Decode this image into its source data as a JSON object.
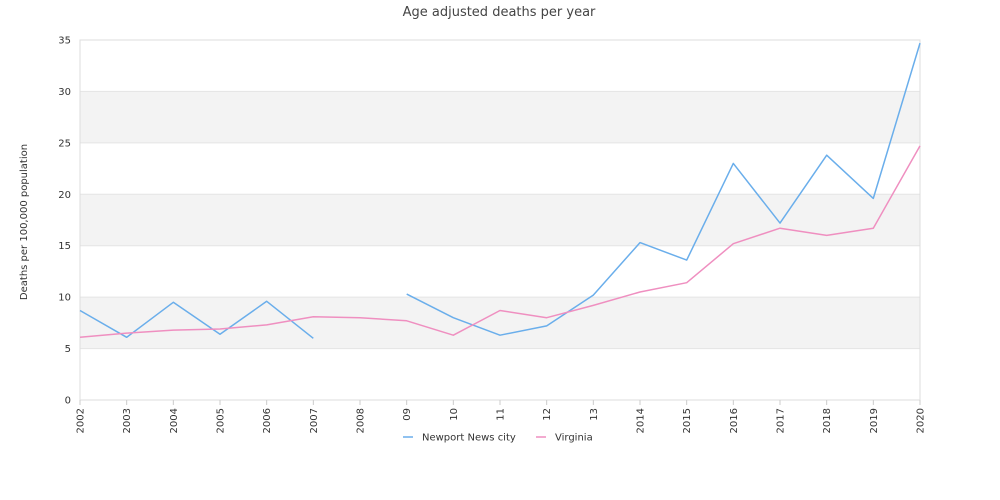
{
  "chart_data": {
    "type": "line",
    "title": "Age adjusted deaths per year",
    "ylabel": "Deaths per 100,000 population",
    "xlabel": "",
    "categories": [
      "2002",
      "2003",
      "2004",
      "2005",
      "2006",
      "2007",
      "2008",
      "09",
      "10",
      "11",
      "12",
      "13",
      "2014",
      "2015",
      "2016",
      "2017",
      "2018",
      "2019",
      "2020"
    ],
    "ylim": [
      0,
      35
    ],
    "yticks": [
      0,
      5,
      10,
      15,
      20,
      25,
      30,
      35
    ],
    "grid": "alternating horizontal bands",
    "legend_position": "bottom-center",
    "series": [
      {
        "name": "Newport News city",
        "color": "#6aaeeb",
        "values": [
          8.7,
          6.1,
          9.5,
          6.4,
          9.6,
          6.0,
          null,
          10.3,
          8.0,
          6.3,
          7.2,
          10.2,
          15.3,
          13.6,
          23.0,
          17.2,
          23.8,
          19.6,
          34.7
        ]
      },
      {
        "name": "Virginia",
        "color": "#ef8fc0",
        "values": [
          6.1,
          6.5,
          6.8,
          6.9,
          7.3,
          8.1,
          8.0,
          7.7,
          6.3,
          8.7,
          8.0,
          9.2,
          10.5,
          11.4,
          15.2,
          16.7,
          16.0,
          16.7,
          24.7
        ]
      }
    ]
  }
}
